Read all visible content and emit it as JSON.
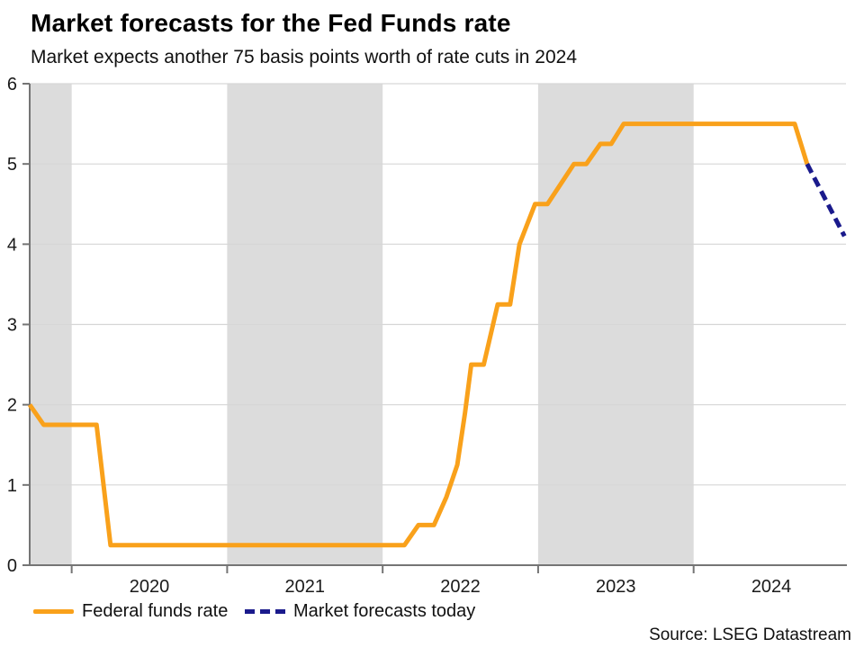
{
  "header": {
    "title": "Market forecasts for the Fed Funds rate",
    "subtitle": "Market expects another 75 basis points worth of rate cuts in 2024"
  },
  "source": "Source: LSEG Datastream",
  "legend": {
    "actual_label": "Federal funds rate",
    "forecast_label": "Market forecasts today"
  },
  "colors": {
    "actual_line": "#F9A11B",
    "forecast_line": "#1A1A8C",
    "shaded_band": "#DCDCDC",
    "gridline": "#D6D6D6",
    "axis": "#757575",
    "tick_label": "#1a1a1a"
  },
  "chart_data": {
    "type": "line",
    "title": "Market forecasts for the Fed Funds rate",
    "subtitle": "Market expects another 75 basis points worth of rate cuts in 2024",
    "xlabel": "",
    "ylabel": "",
    "x_unit": "decimal_year",
    "xlim": [
      2019.73,
      2024.98
    ],
    "ylim": [
      0,
      6
    ],
    "yticks": [
      0,
      1,
      2,
      3,
      4,
      5,
      6
    ],
    "xtick_marks": [
      2020,
      2021,
      2022,
      2023,
      2024
    ],
    "xtick_labels": [
      {
        "pos": 2020.5,
        "label": "2020"
      },
      {
        "pos": 2021.5,
        "label": "2021"
      },
      {
        "pos": 2022.5,
        "label": "2022"
      },
      {
        "pos": 2023.5,
        "label": "2023"
      },
      {
        "pos": 2024.5,
        "label": "2024"
      }
    ],
    "grid": true,
    "legend_position": "bottom-left",
    "shaded_bands": [
      [
        2019.73,
        2020.0
      ],
      [
        2021.0,
        2022.0
      ],
      [
        2023.0,
        2024.0
      ]
    ],
    "series": [
      {
        "name": "Federal funds rate",
        "style": "solid",
        "color": "#F9A11B",
        "points": [
          [
            2019.73,
            2.0
          ],
          [
            2019.82,
            1.75
          ],
          [
            2020.16,
            1.75
          ],
          [
            2020.25,
            0.25
          ],
          [
            2022.14,
            0.25
          ],
          [
            2022.23,
            0.5
          ],
          [
            2022.33,
            0.5
          ],
          [
            2022.41,
            0.85
          ],
          [
            2022.48,
            1.25
          ],
          [
            2022.53,
            1.9
          ],
          [
            2022.57,
            2.5
          ],
          [
            2022.65,
            2.5
          ],
          [
            2022.74,
            3.25
          ],
          [
            2022.82,
            3.25
          ],
          [
            2022.88,
            4.0
          ],
          [
            2022.98,
            4.5
          ],
          [
            2023.06,
            4.5
          ],
          [
            2023.23,
            5.0
          ],
          [
            2023.31,
            5.0
          ],
          [
            2023.4,
            5.25
          ],
          [
            2023.47,
            5.25
          ],
          [
            2023.55,
            5.5
          ],
          [
            2024.65,
            5.5
          ],
          [
            2024.73,
            5.0
          ]
        ]
      },
      {
        "name": "Market forecasts today",
        "style": "dashed",
        "color": "#1A1A8C",
        "points": [
          [
            2024.73,
            5.0
          ],
          [
            2024.97,
            4.1
          ]
        ]
      }
    ]
  }
}
